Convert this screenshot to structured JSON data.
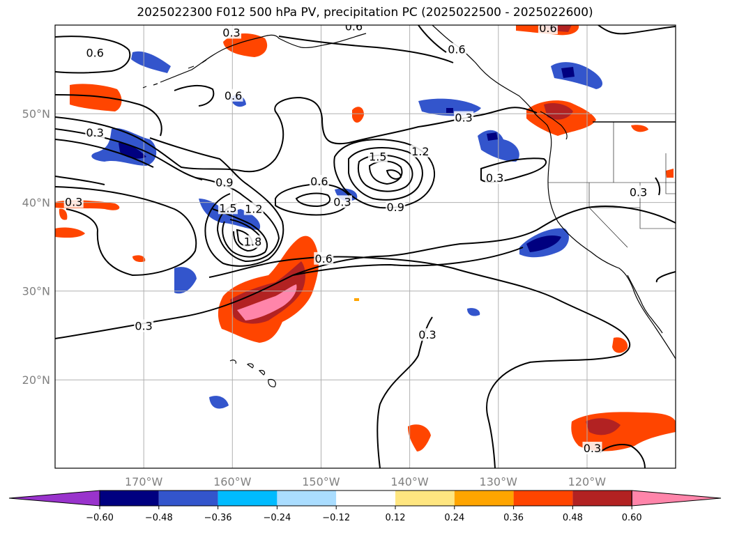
{
  "title": "2025022300 F012 500 hPa PV, precipitation PC (2025022500 - 2025022600)",
  "map": {
    "lat_ticks": [
      {
        "value": 50,
        "label": "50°N"
      },
      {
        "value": 40,
        "label": "40°N"
      },
      {
        "value": 30,
        "label": "30°N"
      },
      {
        "value": 20,
        "label": "20°N"
      }
    ],
    "lon_ticks": [
      {
        "value": -170,
        "label": "170°W"
      },
      {
        "value": -160,
        "label": "160°W"
      },
      {
        "value": -150,
        "label": "150°W"
      },
      {
        "value": -140,
        "label": "140°W"
      },
      {
        "value": -130,
        "label": "130°W"
      },
      {
        "value": -120,
        "label": "120°W"
      }
    ],
    "extent": {
      "lon_min": -180,
      "lon_max": -110,
      "lat_min": 10,
      "lat_max": 60
    },
    "contour_labels": [
      {
        "text": "0.6",
        "lon": -175.5,
        "lat": 56.8
      },
      {
        "text": "0.3",
        "lon": -160.1,
        "lat": 59.1
      },
      {
        "text": "0.6",
        "lon": -146.3,
        "lat": 59.8
      },
      {
        "text": "0.6",
        "lon": -134.7,
        "lat": 57.2
      },
      {
        "text": "0.6",
        "lon": -124.4,
        "lat": 59.6
      },
      {
        "text": "0.6",
        "lon": -159.9,
        "lat": 52.0
      },
      {
        "text": "0.3",
        "lon": -175.5,
        "lat": 47.8
      },
      {
        "text": "0.3",
        "lon": -133.9,
        "lat": 49.5
      },
      {
        "text": "1.5",
        "lon": -143.6,
        "lat": 45.1
      },
      {
        "text": "1.2",
        "lon": -138.8,
        "lat": 45.7
      },
      {
        "text": "0.3",
        "lon": -130.4,
        "lat": 42.7
      },
      {
        "text": "0.3",
        "lon": -114.2,
        "lat": 41.1
      },
      {
        "text": "0.9",
        "lon": -160.9,
        "lat": 42.2
      },
      {
        "text": "0.6",
        "lon": -150.2,
        "lat": 42.3
      },
      {
        "text": "0.3",
        "lon": -177.9,
        "lat": 40.0
      },
      {
        "text": "0.3",
        "lon": -147.6,
        "lat": 40.0
      },
      {
        "text": "0.9",
        "lon": -141.6,
        "lat": 39.4
      },
      {
        "text": "1.5",
        "lon": -160.5,
        "lat": 39.3
      },
      {
        "text": "1.2",
        "lon": -157.6,
        "lat": 39.2
      },
      {
        "text": "1.8",
        "lon": -157.7,
        "lat": 35.5
      },
      {
        "text": "0.6",
        "lon": -149.7,
        "lat": 33.6
      },
      {
        "text": "0.3",
        "lon": -170.0,
        "lat": 26.0
      },
      {
        "text": "0.3",
        "lon": -138.0,
        "lat": 25.0
      },
      {
        "text": "0.3",
        "lon": -119.4,
        "lat": 12.2
      }
    ]
  },
  "colorbar": {
    "ticks": [
      "−0.60",
      "−0.48",
      "−0.36",
      "−0.24",
      "−0.12",
      "0.12",
      "0.24",
      "0.36",
      "0.48",
      "0.60"
    ],
    "colors": [
      "#9933cc",
      "#000080",
      "#3355cc",
      "#00bbff",
      "#aaddff",
      "#ffffff",
      "#ffe680",
      "#ffa500",
      "#ff4500",
      "#b22222",
      "#ff85aa"
    ]
  }
}
